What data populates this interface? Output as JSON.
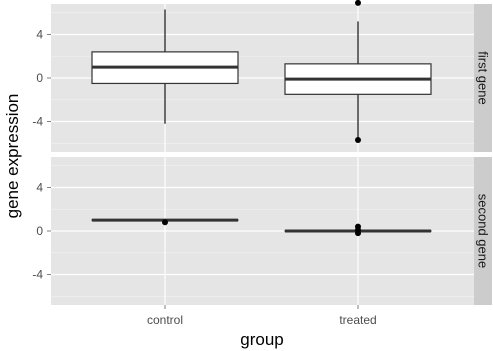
{
  "colors": {
    "panel_bg": "#e5e5e5",
    "strip_bg": "#cccccc",
    "grid_major": "#ffffff",
    "box_fill": "#ffffff",
    "box_line": "#333333",
    "outlier": "#000000"
  },
  "chart_data": {
    "type": "boxplot",
    "xlabel": "group",
    "ylabel": "gene expression",
    "categories": [
      "control",
      "treated"
    ],
    "ylim": [
      -6.8,
      6.8
    ],
    "yticks": [
      -4,
      0,
      4
    ],
    "ytick_labels": [
      "-4",
      "0",
      "4"
    ],
    "grid": true,
    "facets": [
      {
        "strip": "first gene",
        "boxes": [
          {
            "category": "control",
            "min": -4.2,
            "q1": -0.5,
            "median": 1.0,
            "q3": 2.4,
            "max": 6.3,
            "outliers": []
          },
          {
            "category": "treated",
            "min": -5.6,
            "q1": -1.5,
            "median": -0.1,
            "q3": 1.3,
            "max": 5.2,
            "outliers": [
              6.9,
              -5.7
            ]
          }
        ]
      },
      {
        "strip": "second gene",
        "boxes": [
          {
            "category": "control",
            "min": 1.0,
            "q1": 1.0,
            "median": 1.0,
            "q3": 1.0,
            "max": 1.0,
            "outliers": [
              0.8
            ]
          },
          {
            "category": "treated",
            "min": 0.0,
            "q1": 0.0,
            "median": 0.0,
            "q3": 0.0,
            "max": 0.0,
            "outliers": [
              0.4,
              0.1,
              -0.2
            ]
          }
        ]
      }
    ]
  }
}
